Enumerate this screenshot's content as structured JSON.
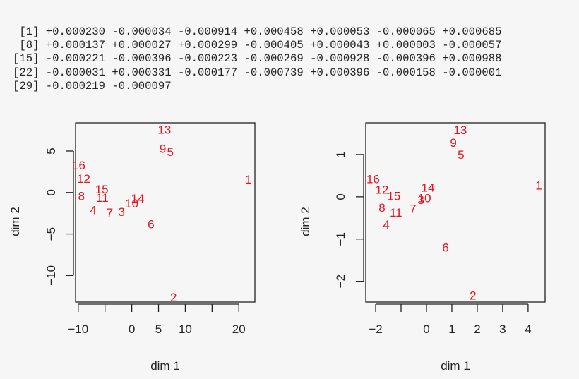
{
  "console": {
    "lines": [
      " [1] +0.000230 -0.000034 -0.000914 +0.000458 +0.000053 -0.000065 +0.000685",
      " [8] +0.000137 +0.000027 +0.000299 -0.000405 +0.000043 +0.000003 -0.000057",
      "[15] -0.000221 -0.000396 -0.000223 -0.000269 -0.000928 -0.000396 +0.000988",
      "[22] -0.000031 +0.000331 -0.000177 -0.000739 +0.000396 -0.000158 -0.000001",
      "[29] -0.000219 -0.000097"
    ]
  },
  "colors": {
    "background": "#f6f6f6",
    "points": "#e8121c",
    "axes": "#222222"
  },
  "chart_data": [
    {
      "type": "scatter",
      "title": "",
      "xlabel": "dim 1",
      "ylabel": "dim 2",
      "xlim": [
        -10.5,
        23
      ],
      "ylim": [
        -13.2,
        8.4
      ],
      "xticks": [
        -10,
        -5,
        0,
        5,
        10,
        15,
        20
      ],
      "xtick_labels": [
        "−10",
        "",
        "0",
        "5",
        "10",
        "",
        "20"
      ],
      "yticks": [
        -10,
        -5,
        0,
        5
      ],
      "ytick_labels": [
        "−10",
        "−5",
        "0",
        "5"
      ],
      "grid": false,
      "legend": null,
      "marker": "text labels",
      "points": [
        {
          "label": "1",
          "x": 21.8,
          "y": 1.6
        },
        {
          "label": "2",
          "x": 7.8,
          "y": -12.6
        },
        {
          "label": "3",
          "x": -1.9,
          "y": -2.3
        },
        {
          "label": "4",
          "x": -7.2,
          "y": -2.1
        },
        {
          "label": "5",
          "x": 7.2,
          "y": 4.9
        },
        {
          "label": "6",
          "x": 3.6,
          "y": -3.8
        },
        {
          "label": "7",
          "x": -4.1,
          "y": -2.4
        },
        {
          "label": "8",
          "x": -9.4,
          "y": -0.4
        },
        {
          "label": "9",
          "x": 5.8,
          "y": 5.3
        },
        {
          "label": "10",
          "x": 0.0,
          "y": -1.3
        },
        {
          "label": "11",
          "x": -5.5,
          "y": -0.6
        },
        {
          "label": "12",
          "x": -9.0,
          "y": 1.7
        },
        {
          "label": "13",
          "x": 6.1,
          "y": 7.6
        },
        {
          "label": "14",
          "x": 1.1,
          "y": -0.7
        },
        {
          "label": "15",
          "x": -5.6,
          "y": 0.4
        },
        {
          "label": "16",
          "x": -9.9,
          "y": 3.3
        }
      ]
    },
    {
      "type": "scatter",
      "title": "",
      "xlabel": "dim 1",
      "ylabel": "dim 2",
      "xlim": [
        -2.39,
        4.67
      ],
      "ylim": [
        -2.49,
        1.75
      ],
      "xticks": [
        -2,
        -1,
        0,
        1,
        2,
        3,
        4
      ],
      "xtick_labels": [
        "−2",
        "",
        "0",
        "1",
        "2",
        "3",
        "4"
      ],
      "yticks": [
        -2,
        -1,
        0,
        1
      ],
      "ytick_labels": [
        "−2",
        "−1",
        "0",
        "1"
      ],
      "grid": false,
      "legend": null,
      "marker": "text labels",
      "points": [
        {
          "label": "1",
          "x": 4.42,
          "y": 0.27
        },
        {
          "label": "2",
          "x": 1.83,
          "y": -2.33
        },
        {
          "label": "3",
          "x": -0.22,
          "y": -0.07
        },
        {
          "label": "4",
          "x": -1.58,
          "y": -0.65
        },
        {
          "label": "5",
          "x": 1.36,
          "y": 1.0
        },
        {
          "label": "6",
          "x": 0.75,
          "y": -1.2
        },
        {
          "label": "7",
          "x": -0.53,
          "y": -0.28
        },
        {
          "label": "8",
          "x": -1.75,
          "y": -0.25
        },
        {
          "label": "9",
          "x": 1.06,
          "y": 1.28
        },
        {
          "label": "10",
          "x": -0.08,
          "y": -0.03
        },
        {
          "label": "11",
          "x": -1.2,
          "y": -0.37
        },
        {
          "label": "12",
          "x": -1.75,
          "y": 0.17
        },
        {
          "label": "13",
          "x": 1.33,
          "y": 1.58
        },
        {
          "label": "14",
          "x": 0.06,
          "y": 0.22
        },
        {
          "label": "15",
          "x": -1.28,
          "y": 0.02
        },
        {
          "label": "16",
          "x": -2.1,
          "y": 0.42
        }
      ]
    }
  ]
}
